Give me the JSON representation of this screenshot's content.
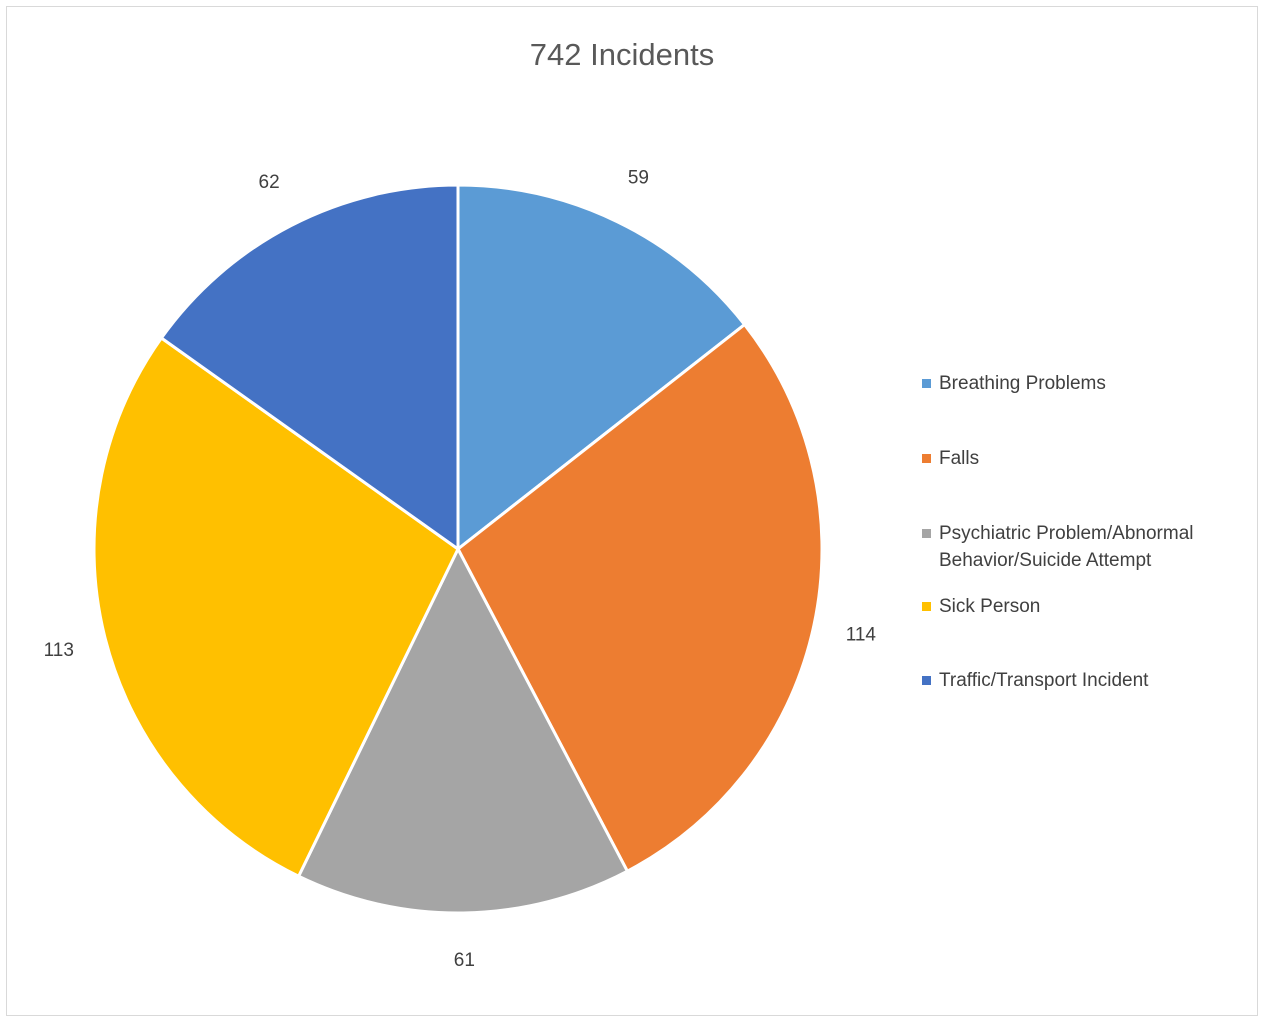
{
  "chart_data": {
    "type": "pie",
    "title": "742 Incidents",
    "categories": [
      "Breathing Problems",
      "Falls",
      "Psychiatric Problem/Abnormal Behavior/Suicide Attempt",
      "Sick Person",
      "Traffic/Transport Incident"
    ],
    "values": [
      59,
      114,
      61,
      113,
      62
    ],
    "colors": [
      "#5b9bd5",
      "#ed7d31",
      "#a5a5a5",
      "#ffc000",
      "#4472c4"
    ],
    "legend_position": "right",
    "start_angle": "top",
    "direction": "clockwise"
  }
}
